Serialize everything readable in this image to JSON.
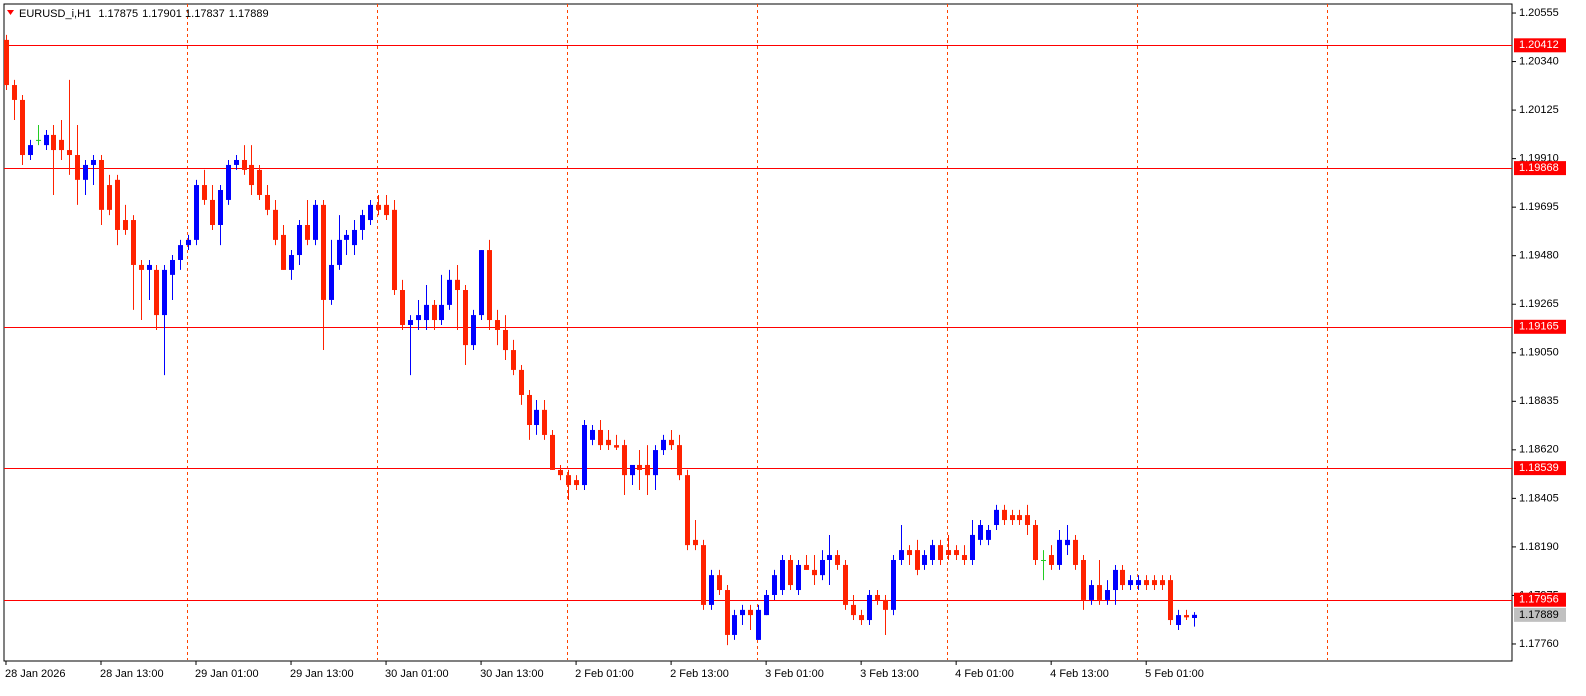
{
  "chart_data": {
    "type": "candlestick",
    "title": "EURUSD_i,H1",
    "ohlc": [
      [
        1.20436,
        1.20458,
        1.20214,
        1.20236
      ],
      [
        1.20236,
        1.20259,
        1.20081,
        1.2017
      ],
      [
        1.2017,
        1.20192,
        1.19882,
        1.19926
      ],
      [
        1.19926,
        1.19993,
        1.19904,
        1.1997
      ],
      [
        1.19993,
        1.20059,
        1.1997,
        1.19993
      ],
      [
        1.1997,
        1.20037,
        1.19948,
        1.20015
      ],
      [
        1.20015,
        1.20059,
        1.19749,
        1.19948
      ],
      [
        1.19993,
        1.20081,
        1.19904,
        1.19948
      ],
      [
        1.19948,
        1.20259,
        1.19838,
        1.19926
      ],
      [
        1.19926,
        1.20059,
        1.19705,
        1.19816
      ],
      [
        1.19816,
        1.19904,
        1.19749,
        1.19882
      ],
      [
        1.19882,
        1.19926,
        1.19793,
        1.19904
      ],
      [
        1.19904,
        1.19926,
        1.19616,
        1.19683
      ],
      [
        1.19793,
        1.19838,
        1.1966,
        1.19683
      ],
      [
        1.19816,
        1.19838,
        1.19527,
        1.19594
      ],
      [
        1.19638,
        1.19705,
        1.19572,
        1.19594
      ],
      [
        1.19638,
        1.1966,
        1.1924,
        1.19439
      ],
      [
        1.19439,
        1.19461,
        1.19195,
        1.19417
      ],
      [
        1.19417,
        1.19461,
        1.19284,
        1.19439
      ],
      [
        1.19417,
        1.19439,
        1.19151,
        1.19217
      ],
      [
        1.19217,
        1.19439,
        1.18951,
        1.19417
      ],
      [
        1.19395,
        1.19483,
        1.19284,
        1.19461
      ],
      [
        1.19461,
        1.1955,
        1.19417,
        1.19527
      ],
      [
        1.19527,
        1.19572,
        1.19505,
        1.1955
      ],
      [
        1.1955,
        1.19816,
        1.19527,
        1.19793
      ],
      [
        1.19793,
        1.1986,
        1.19705,
        1.19727
      ],
      [
        1.19727,
        1.19793,
        1.19594,
        1.19616
      ],
      [
        1.19616,
        1.19793,
        1.19527,
        1.19771
      ],
      [
        1.19727,
        1.19904,
        1.19705,
        1.19882
      ],
      [
        1.19882,
        1.19926,
        1.1986,
        1.19904
      ],
      [
        1.19904,
        1.1997,
        1.19838,
        1.1986
      ],
      [
        1.19882,
        1.1997,
        1.19749,
        1.19793
      ],
      [
        1.1986,
        1.19882,
        1.19727,
        1.19749
      ],
      [
        1.19749,
        1.19793,
        1.1966,
        1.19683
      ],
      [
        1.19683,
        1.19727,
        1.19527,
        1.1955
      ],
      [
        1.19572,
        1.19616,
        1.19417,
        1.19417
      ],
      [
        1.19417,
        1.19505,
        1.19373,
        1.19483
      ],
      [
        1.19483,
        1.19638,
        1.19439,
        1.19616
      ],
      [
        1.19616,
        1.19727,
        1.19527,
        1.1955
      ],
      [
        1.1955,
        1.19727,
        1.19527,
        1.19705
      ],
      [
        1.19705,
        1.19727,
        1.19062,
        1.19284
      ],
      [
        1.19284,
        1.1955,
        1.19262,
        1.19439
      ],
      [
        1.19439,
        1.1966,
        1.19417,
        1.1955
      ],
      [
        1.1955,
        1.19594,
        1.19483,
        1.19572
      ],
      [
        1.19527,
        1.19638,
        1.19483,
        1.19594
      ],
      [
        1.19594,
        1.19683,
        1.1955,
        1.1966
      ],
      [
        1.19638,
        1.19727,
        1.19616,
        1.19705
      ],
      [
        1.19705,
        1.19749,
        1.1966,
        1.19683
      ],
      [
        1.19705,
        1.19749,
        1.19638,
        1.1966
      ],
      [
        1.19683,
        1.19727,
        1.19306,
        1.19328
      ],
      [
        1.19328,
        1.19373,
        1.19151,
        1.19173
      ],
      [
        1.19173,
        1.19217,
        1.18951,
        1.19195
      ],
      [
        1.19195,
        1.19284,
        1.19151,
        1.19217
      ],
      [
        1.19195,
        1.1935,
        1.19151,
        1.19262
      ],
      [
        1.19262,
        1.19284,
        1.19151,
        1.19195
      ],
      [
        1.19195,
        1.19395,
        1.19173,
        1.19262
      ],
      [
        1.19262,
        1.19417,
        1.1924,
        1.19373
      ],
      [
        1.19373,
        1.19439,
        1.19151,
        1.19328
      ],
      [
        1.19328,
        1.1935,
        1.18996,
        1.19084
      ],
      [
        1.19084,
        1.1924,
        1.19062,
        1.19217
      ],
      [
        1.19217,
        1.19505,
        1.19195,
        1.19505
      ],
      [
        1.19505,
        1.1955,
        1.19151,
        1.19195
      ],
      [
        1.19195,
        1.1924,
        1.19084,
        1.19151
      ],
      [
        1.19151,
        1.19217,
        1.19018,
        1.19062
      ],
      [
        1.19062,
        1.19107,
        1.18951,
        1.18974
      ],
      [
        1.18974,
        1.18996,
        1.18819,
        1.18863
      ],
      [
        1.18863,
        1.18885,
        1.18664,
        1.1873
      ],
      [
        1.1873,
        1.18841,
        1.18686,
        1.18797
      ],
      [
        1.18797,
        1.18841,
        1.18664,
        1.18686
      ],
      [
        1.18686,
        1.18708,
        1.18531,
        1.18531
      ],
      [
        1.18531,
        1.18553,
        1.18486,
        1.18508
      ],
      [
        1.18508,
        1.18531,
        1.18398,
        1.18464
      ],
      [
        1.18486,
        1.18508,
        1.18442,
        1.18464
      ],
      [
        1.18464,
        1.18752,
        1.18442,
        1.1873
      ],
      [
        1.18664,
        1.1873,
        1.18641,
        1.18708
      ],
      [
        1.18708,
        1.18752,
        1.18619,
        1.18641
      ],
      [
        1.18664,
        1.18708,
        1.18619,
        1.18641
      ],
      [
        1.18641,
        1.18686,
        1.18619,
        1.1863
      ],
      [
        1.18641,
        1.18664,
        1.1842,
        1.18508
      ],
      [
        1.18508,
        1.18553,
        1.18464,
        1.18553
      ],
      [
        1.18553,
        1.18619,
        1.18442,
        1.18531
      ],
      [
        1.18553,
        1.18641,
        1.1842,
        1.18508
      ],
      [
        1.18508,
        1.18641,
        1.18442,
        1.18619
      ],
      [
        1.18619,
        1.18686,
        1.18597,
        1.18664
      ],
      [
        1.18664,
        1.18708,
        1.18619,
        1.18641
      ],
      [
        1.18641,
        1.18686,
        1.18486,
        1.18508
      ],
      [
        1.18508,
        1.18531,
        1.18176,
        1.18198
      ],
      [
        1.18221,
        1.18309,
        1.18176,
        1.18198
      ],
      [
        1.18198,
        1.18221,
        1.17911,
        1.17933
      ],
      [
        1.17933,
        1.18088,
        1.17911,
        1.18065
      ],
      [
        1.18065,
        1.18088,
        1.17977,
        1.17999
      ],
      [
        1.17999,
        1.18021,
        1.17755,
        1.178
      ],
      [
        1.178,
        1.17911,
        1.17778,
        1.17888
      ],
      [
        1.17888,
        1.17933,
        1.17844,
        1.17911
      ],
      [
        1.17911,
        1.17933,
        1.17822,
        1.17888
      ],
      [
        1.17778,
        1.17933,
        1.17778,
        1.17911
      ],
      [
        1.17888,
        1.17999,
        1.17888,
        1.17977
      ],
      [
        1.17977,
        1.18088,
        1.17955,
        1.18065
      ],
      [
        1.17999,
        1.18154,
        1.17977,
        1.18132
      ],
      [
        1.18132,
        1.18154,
        1.17999,
        1.18021
      ],
      [
        1.17999,
        1.18132,
        1.17977,
        1.1811
      ],
      [
        1.1811,
        1.18154,
        1.18088,
        1.18088
      ],
      [
        1.18088,
        1.18154,
        1.18021,
        1.18065
      ],
      [
        1.18065,
        1.18176,
        1.18043,
        1.18132
      ],
      [
        1.18132,
        1.18243,
        1.18021,
        1.18154
      ],
      [
        1.18154,
        1.18176,
        1.18088,
        1.1811
      ],
      [
        1.1811,
        1.18132,
        1.17911,
        1.17933
      ],
      [
        1.17933,
        1.17977,
        1.17866,
        1.17888
      ],
      [
        1.17888,
        1.17911,
        1.17844,
        1.17866
      ],
      [
        1.17866,
        1.17999,
        1.17844,
        1.17977
      ],
      [
        1.17977,
        1.17999,
        1.17933,
        1.17955
      ],
      [
        1.17955,
        1.17977,
        1.178,
        1.17911
      ],
      [
        1.17911,
        1.18154,
        1.17888,
        1.18132
      ],
      [
        1.18132,
        1.18287,
        1.1811,
        1.18176
      ],
      [
        1.18176,
        1.18198,
        1.1811,
        1.18154
      ],
      [
        1.18176,
        1.18221,
        1.18065,
        1.18088
      ],
      [
        1.1811,
        1.18176,
        1.18088,
        1.18154
      ],
      [
        1.18132,
        1.18221,
        1.1811,
        1.18198
      ],
      [
        1.18198,
        1.18221,
        1.1811,
        1.18132
      ],
      [
        1.18176,
        1.18243,
        1.18132,
        1.18154
      ],
      [
        1.18176,
        1.18198,
        1.18132,
        1.18154
      ],
      [
        1.18154,
        1.18198,
        1.1811,
        1.18132
      ],
      [
        1.18132,
        1.18309,
        1.1811,
        1.18243
      ],
      [
        1.18221,
        1.18309,
        1.18198,
        1.18287
      ],
      [
        1.18221,
        1.18287,
        1.18198,
        1.18265
      ],
      [
        1.18287,
        1.18376,
        1.18265,
        1.18354
      ],
      [
        1.18354,
        1.18376,
        1.18287,
        1.18309
      ],
      [
        1.18331,
        1.18354,
        1.18287,
        1.18309
      ],
      [
        1.18331,
        1.18354,
        1.18287,
        1.18309
      ],
      [
        1.18331,
        1.18376,
        1.18243,
        1.18287
      ],
      [
        1.18287,
        1.18309,
        1.1811,
        1.18132
      ],
      [
        1.18132,
        1.18176,
        1.18043,
        1.18132
      ],
      [
        1.18154,
        1.18198,
        1.18088,
        1.1811
      ],
      [
        1.1811,
        1.18265,
        1.18088,
        1.18221
      ],
      [
        1.18198,
        1.18287,
        1.18154,
        1.18221
      ],
      [
        1.18221,
        1.18243,
        1.18088,
        1.1811
      ],
      [
        1.18132,
        1.18154,
        1.17911,
        1.17955
      ],
      [
        1.17955,
        1.18043,
        1.17933,
        1.18021
      ],
      [
        1.18021,
        1.18132,
        1.17933,
        1.17955
      ],
      [
        1.17955,
        1.18043,
        1.17933,
        1.17999
      ],
      [
        1.17999,
        1.1811,
        1.17933,
        1.18088
      ],
      [
        1.18088,
        1.1811,
        1.17999,
        1.18021
      ],
      [
        1.18021,
        1.18065,
        1.17999,
        1.18043
      ],
      [
        1.18021,
        1.18065,
        1.17999,
        1.18043
      ],
      [
        1.18043,
        1.18065,
        1.17999,
        1.18021
      ],
      [
        1.18043,
        1.18065,
        1.17999,
        1.18021
      ],
      [
        1.18043,
        1.18065,
        1.17999,
        1.18021
      ],
      [
        1.18043,
        1.18065,
        1.17844,
        1.17866
      ],
      [
        1.17844,
        1.17911,
        1.17822,
        1.17888
      ],
      [
        1.17888,
        1.17911,
        1.17866,
        1.17878
      ],
      [
        1.17875,
        1.17901,
        1.17837,
        1.17889
      ]
    ],
    "bull_color": "#0000ff",
    "bear_color": "#ff2200",
    "doji_color": "#22cc22",
    "hlines": [
      1.20412,
      1.19868,
      1.19165,
      1.18539,
      1.17956
    ],
    "hline_color": "#ff0000",
    "ylim": [
      1.17689,
      1.20595
    ],
    "yticks": [
      1.20555,
      {
        "value": 1.2034,
        "label": "1.20340"
      },
      1.20125,
      {
        "value": 1.1991,
        "label": "1.19910"
      },
      1.19695,
      {
        "value": 1.1948,
        "label": "1.19480"
      },
      1.19265,
      {
        "value": 1.1905,
        "label": "1.19050"
      },
      1.18835,
      {
        "value": 1.1862,
        "label": "1.18620"
      },
      1.18405,
      {
        "value": 1.1819,
        "label": "1.18190"
      },
      1.17975,
      {
        "value": 1.1776,
        "label": "1.17760"
      }
    ],
    "xlim": [
      -0.25,
      190.2
    ],
    "xticks": [
      {
        "value": 0,
        "label": "28 Jan 2026"
      },
      {
        "value": 12,
        "label": "28 Jan 13:00"
      },
      {
        "value": 24,
        "label": "29 Jan 01:00"
      },
      {
        "value": 36,
        "label": "29 Jan 13:00"
      },
      {
        "value": 48,
        "label": "30 Jan 01:00"
      },
      {
        "value": 60,
        "label": "30 Jan 13:00"
      },
      {
        "value": 72,
        "label": "2 Feb 01:00"
      },
      {
        "value": 84,
        "label": "2 Feb 13:00"
      },
      {
        "value": 96,
        "label": "3 Feb 01:00"
      },
      {
        "value": 108,
        "label": "3 Feb 13:00"
      },
      {
        "value": 120,
        "label": "4 Feb 01:00"
      },
      {
        "value": 132,
        "label": "4 Feb 13:00"
      },
      {
        "value": 144,
        "label": "5 Feb 01:00"
      }
    ],
    "grid": true,
    "grid_color": "#ff4400"
  }
}
